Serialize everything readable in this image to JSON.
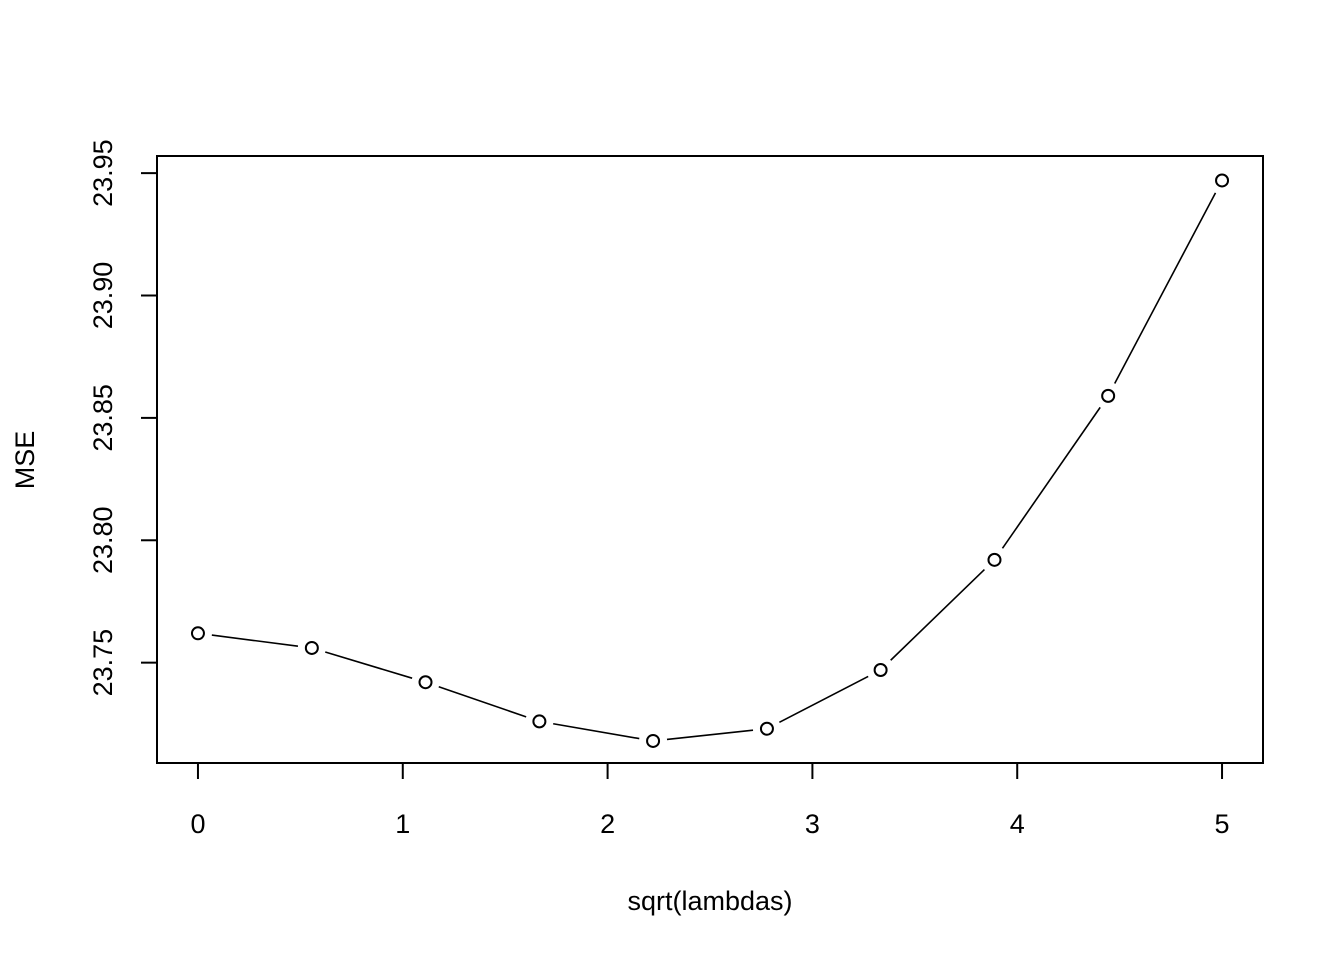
{
  "chart_data": {
    "type": "line",
    "title": "",
    "xlabel": "sqrt(lambdas)",
    "ylabel": "MSE",
    "xlim": [
      -0.2,
      5.2
    ],
    "ylim": [
      23.709,
      23.957
    ],
    "x_ticks": [
      0,
      1,
      2,
      3,
      4,
      5
    ],
    "x_tick_labels": [
      "0",
      "1",
      "2",
      "3",
      "4",
      "5"
    ],
    "y_ticks": [
      23.75,
      23.8,
      23.85,
      23.9,
      23.95
    ],
    "y_tick_labels": [
      "23.75",
      "23.80",
      "23.85",
      "23.90",
      "23.95"
    ],
    "grid": false,
    "legend": "none",
    "marker": "open-circle",
    "line_style": "solid-gapped",
    "colors": {
      "line": "#000000",
      "marker": "#000000",
      "background": "#ffffff"
    },
    "series": [
      {
        "x": [
          0,
          0.556,
          1.111,
          1.667,
          2.222,
          2.778,
          3.333,
          3.889,
          4.444,
          5.0
        ],
        "values": [
          23.762,
          23.756,
          23.742,
          23.726,
          23.718,
          23.723,
          23.747,
          23.792,
          23.859,
          23.947
        ]
      }
    ]
  }
}
